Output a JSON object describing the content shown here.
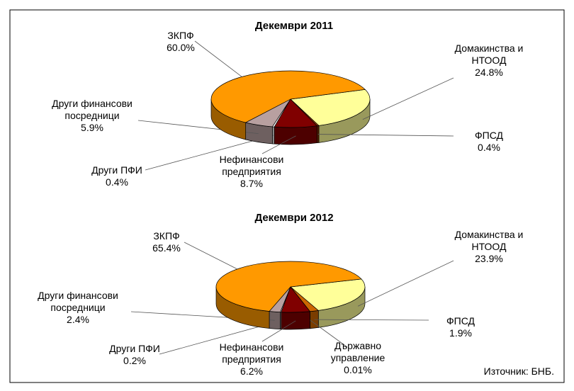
{
  "chart_data": [
    {
      "type": "pie",
      "title": "Декември 2011",
      "categories": [
        "Домакинства и\nНТООД",
        "ФПСД",
        "Нефинансови\nпредприятия",
        "Други ПФИ",
        "Други финансови\nпосредници",
        "ЗКПФ"
      ],
      "values": [
        24.8,
        0.4,
        8.7,
        0.4,
        5.9,
        60.0
      ],
      "value_labels": [
        "24.8%",
        "0.4%",
        "8.7%",
        "0.4%",
        "5.9%",
        "60.0%"
      ],
      "colors": [
        "#ffff99",
        "#993300",
        "#800000",
        "#ffffff",
        "#b8a0a0",
        "#ff9900"
      ]
    },
    {
      "type": "pie",
      "title": "Декември 2012",
      "categories": [
        "Домакинства и\nНТООД",
        "ФПСД",
        "Държавно\nуправление",
        "Нефинансови\nпредприятия",
        "Други ПФИ",
        "Други финансови\nпосредници",
        "ЗКПФ"
      ],
      "values": [
        23.9,
        1.9,
        0.01,
        6.2,
        0.2,
        2.4,
        65.4
      ],
      "value_labels": [
        "23.9%",
        "1.9%",
        "0.01%",
        "6.2%",
        "0.2%",
        "2.4%",
        "65.4%"
      ],
      "colors": [
        "#ffff99",
        "#cc6600",
        "#ff9900",
        "#800000",
        "#ffffff",
        "#b8a0a0",
        "#ff9900"
      ]
    }
  ],
  "source": "Източник: БНБ."
}
